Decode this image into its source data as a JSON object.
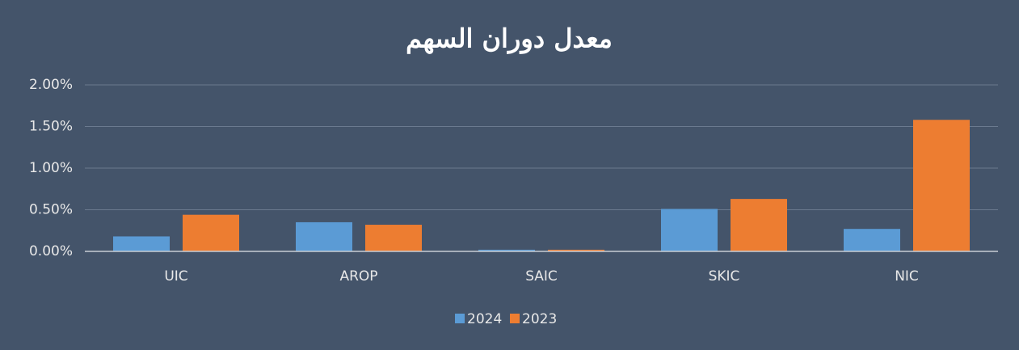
{
  "chart_data": {
    "type": "bar",
    "title": "معدل دوران السهم",
    "categories": [
      "UIC",
      "AROP",
      "SAIC",
      "SKIC",
      "NIC"
    ],
    "series": [
      {
        "name": "2024",
        "color": "#5b9bd5",
        "values": [
          0.18,
          0.35,
          0.02,
          0.51,
          0.27
        ]
      },
      {
        "name": "2023",
        "color": "#ed7d31",
        "values": [
          0.44,
          0.32,
          0.02,
          0.63,
          1.58
        ]
      }
    ],
    "ylim": [
      0,
      2
    ],
    "yticks": [
      {
        "value": 0,
        "label": "0.00%"
      },
      {
        "value": 0.5,
        "label": "0.50%"
      },
      {
        "value": 1,
        "label": "1.00%"
      },
      {
        "value": 1.5,
        "label": "1.50%"
      },
      {
        "value": 2,
        "label": "2.00%"
      }
    ],
    "grid": true,
    "legend": "bottom"
  }
}
